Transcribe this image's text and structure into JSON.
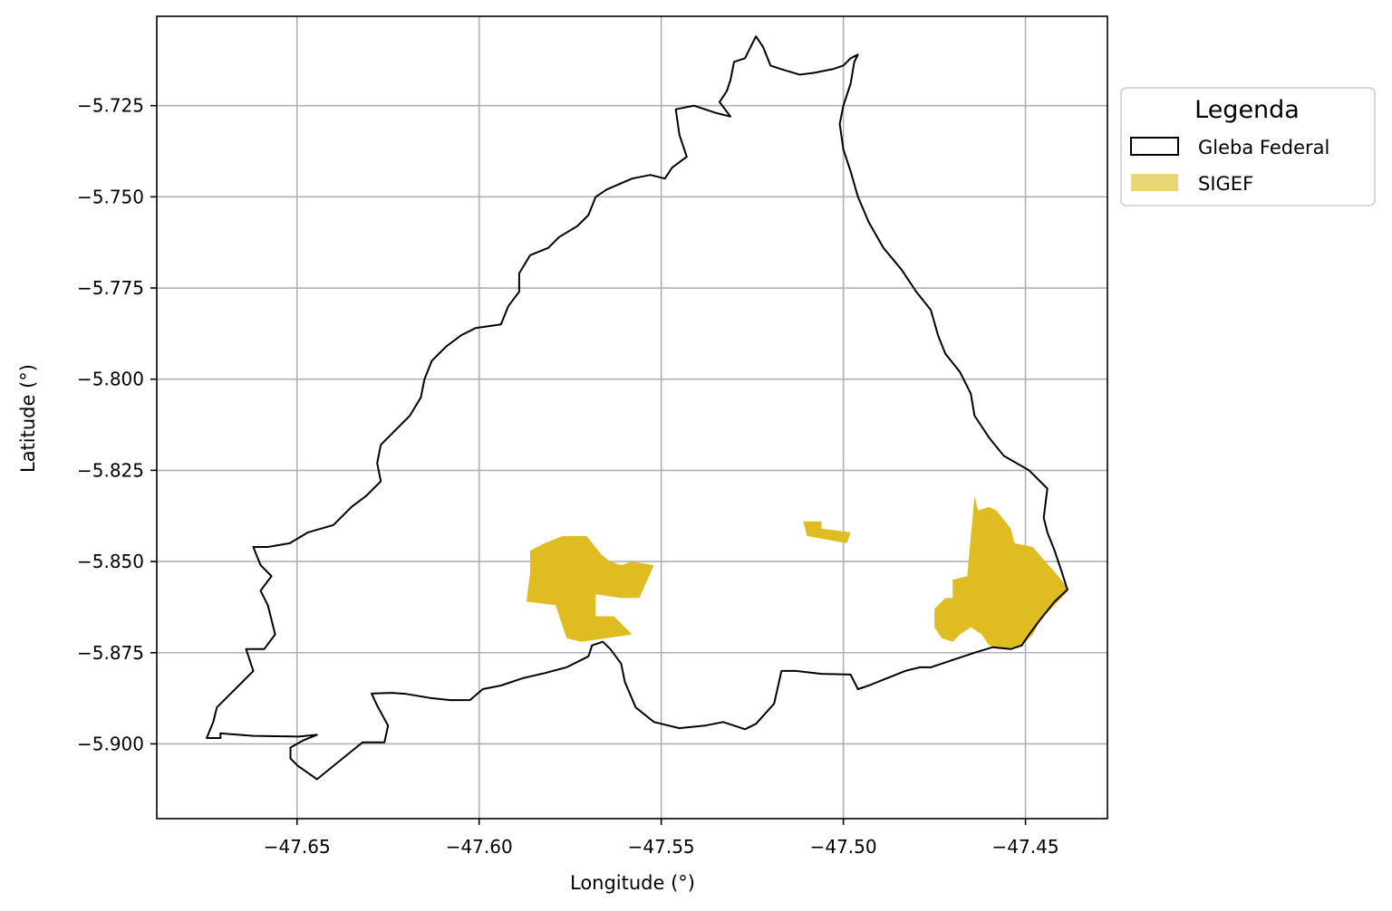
{
  "chart_data": {
    "type": "map",
    "xlabel": "Longitude (°)",
    "ylabel": "Latitude (°)",
    "xlim": [
      -47.6885,
      -47.4275
    ],
    "ylim": [
      -5.9205,
      -5.7005
    ],
    "grid": true,
    "xticks": [
      -47.65,
      -47.6,
      -47.55,
      -47.5,
      -47.45
    ],
    "yticks": [
      -5.725,
      -5.75,
      -5.775,
      -5.8,
      -5.825,
      -5.85,
      -5.875,
      -5.9
    ],
    "xtick_labels": [
      "−47.65",
      "−47.60",
      "−47.55",
      "−47.50",
      "−47.45"
    ],
    "ytick_labels": [
      "−5.725",
      "−5.750",
      "−5.775",
      "−5.800",
      "−5.825",
      "−5.850",
      "−5.875",
      "−5.900"
    ],
    "legend": {
      "title": "Legenda",
      "placement": "outside-upper-right",
      "entries": [
        {
          "label": "Gleba Federal",
          "style": "outline",
          "color": "#000000"
        },
        {
          "label": "SIGEF",
          "style": "fill",
          "color": "#e9d676"
        }
      ]
    },
    "colors": {
      "gleba_edge": "#000000",
      "sigef_fill": "#dfbd22",
      "grid": "#b0b0b0"
    },
    "layers": [
      {
        "name": "Gleba Federal",
        "kind": "outline",
        "rings": [
          [
            [
              -47.6748,
              -5.8984
            ],
            [
              -47.671,
              -5.8984
            ],
            [
              -47.671,
              -5.8971
            ],
            [
              -47.662,
              -5.8978
            ],
            [
              -47.6495,
              -5.898
            ],
            [
              -47.6445,
              -5.8975
            ],
            [
              -47.6482,
              -5.899
            ],
            [
              -47.6518,
              -5.901
            ],
            [
              -47.6518,
              -5.904
            ],
            [
              -47.6498,
              -5.906
            ],
            [
              -47.6445,
              -5.9097
            ],
            [
              -47.635,
              -5.902
            ],
            [
              -47.632,
              -5.8996
            ],
            [
              -47.626,
              -5.8996
            ],
            [
              -47.625,
              -5.895
            ],
            [
              -47.628,
              -5.8895
            ],
            [
              -47.6295,
              -5.8862
            ],
            [
              -47.624,
              -5.886
            ],
            [
              -47.62,
              -5.8863
            ],
            [
              -47.6135,
              -5.8874
            ],
            [
              -47.608,
              -5.888
            ],
            [
              -47.6025,
              -5.888
            ],
            [
              -47.599,
              -5.885
            ],
            [
              -47.594,
              -5.884
            ],
            [
              -47.588,
              -5.882
            ],
            [
              -47.582,
              -5.8806
            ],
            [
              -47.576,
              -5.879
            ],
            [
              -47.57,
              -5.876
            ],
            [
              -47.569,
              -5.873
            ],
            [
              -47.566,
              -5.872
            ],
            [
              -47.564,
              -5.874
            ],
            [
              -47.561,
              -5.878
            ],
            [
              -47.56,
              -5.883
            ],
            [
              -47.557,
              -5.89
            ],
            [
              -47.552,
              -5.894
            ],
            [
              -47.545,
              -5.8957
            ],
            [
              -47.538,
              -5.895
            ],
            [
              -47.533,
              -5.894
            ],
            [
              -47.527,
              -5.896
            ],
            [
              -47.524,
              -5.8945
            ],
            [
              -47.519,
              -5.889
            ],
            [
              -47.517,
              -5.88
            ],
            [
              -47.513,
              -5.88
            ],
            [
              -47.506,
              -5.8808
            ],
            [
              -47.498,
              -5.881
            ],
            [
              -47.496,
              -5.885
            ],
            [
              -47.493,
              -5.884
            ],
            [
              -47.488,
              -5.882
            ],
            [
              -47.483,
              -5.88
            ],
            [
              -47.479,
              -5.879
            ],
            [
              -47.476,
              -5.879
            ],
            [
              -47.47,
              -5.877
            ],
            [
              -47.464,
              -5.875
            ],
            [
              -47.459,
              -5.8735
            ],
            [
              -47.454,
              -5.874
            ],
            [
              -47.451,
              -5.873
            ],
            [
              -47.449,
              -5.87
            ],
            [
              -47.446,
              -5.866
            ],
            [
              -47.442,
              -5.861
            ],
            [
              -47.4385,
              -5.8577
            ],
            [
              -47.44,
              -5.853
            ],
            [
              -47.442,
              -5.847
            ],
            [
              -47.444,
              -5.842
            ],
            [
              -47.445,
              -5.838
            ],
            [
              -47.444,
              -5.83
            ],
            [
              -47.449,
              -5.825
            ],
            [
              -47.456,
              -5.821
            ],
            [
              -47.46,
              -5.816
            ],
            [
              -47.464,
              -5.81
            ],
            [
              -47.465,
              -5.804
            ],
            [
              -47.468,
              -5.798
            ],
            [
              -47.472,
              -5.793
            ],
            [
              -47.474,
              -5.788
            ],
            [
              -47.476,
              -5.781
            ],
            [
              -47.48,
              -5.776
            ],
            [
              -47.484,
              -5.77
            ],
            [
              -47.489,
              -5.764
            ],
            [
              -47.493,
              -5.757
            ],
            [
              -47.496,
              -5.75
            ],
            [
              -47.498,
              -5.743
            ],
            [
              -47.5,
              -5.737
            ],
            [
              -47.501,
              -5.73
            ],
            [
              -47.5,
              -5.725
            ],
            [
              -47.498,
              -5.719
            ],
            [
              -47.497,
              -5.713
            ],
            [
              -47.496,
              -5.711
            ],
            [
              -47.498,
              -5.712
            ],
            [
              -47.5,
              -5.714
            ],
            [
              -47.503,
              -5.715
            ],
            [
              -47.508,
              -5.716
            ],
            [
              -47.512,
              -5.7165
            ],
            [
              -47.517,
              -5.715
            ],
            [
              -47.52,
              -5.714
            ],
            [
              -47.522,
              -5.709
            ],
            [
              -47.524,
              -5.706
            ],
            [
              -47.525,
              -5.708
            ],
            [
              -47.527,
              -5.712
            ],
            [
              -47.53,
              -5.713
            ],
            [
              -47.531,
              -5.718
            ],
            [
              -47.532,
              -5.721
            ],
            [
              -47.534,
              -5.724
            ],
            [
              -47.531,
              -5.728
            ],
            [
              -47.535,
              -5.727
            ],
            [
              -47.541,
              -5.725
            ],
            [
              -47.546,
              -5.726
            ],
            [
              -47.545,
              -5.733
            ],
            [
              -47.543,
              -5.739
            ],
            [
              -47.547,
              -5.742
            ],
            [
              -47.549,
              -5.745
            ],
            [
              -47.553,
              -5.744
            ],
            [
              -47.558,
              -5.745
            ],
            [
              -47.565,
              -5.748
            ],
            [
              -47.568,
              -5.75
            ],
            [
              -47.57,
              -5.755
            ],
            [
              -47.573,
              -5.758
            ],
            [
              -47.578,
              -5.761
            ],
            [
              -47.581,
              -5.764
            ],
            [
              -47.586,
              -5.766
            ],
            [
              -47.589,
              -5.771
            ],
            [
              -47.589,
              -5.776
            ],
            [
              -47.592,
              -5.78
            ],
            [
              -47.594,
              -5.785
            ],
            [
              -47.601,
              -5.786
            ],
            [
              -47.605,
              -5.788
            ],
            [
              -47.609,
              -5.791
            ],
            [
              -47.613,
              -5.795
            ],
            [
              -47.615,
              -5.8
            ],
            [
              -47.616,
              -5.805
            ],
            [
              -47.619,
              -5.81
            ],
            [
              -47.623,
              -5.814
            ],
            [
              -47.627,
              -5.818
            ],
            [
              -47.628,
              -5.823
            ],
            [
              -47.627,
              -5.828
            ],
            [
              -47.631,
              -5.832
            ],
            [
              -47.635,
              -5.835
            ],
            [
              -47.64,
              -5.84
            ],
            [
              -47.647,
              -5.842
            ],
            [
              -47.652,
              -5.845
            ],
            [
              -47.658,
              -5.846
            ],
            [
              -47.662,
              -5.846
            ],
            [
              -47.66,
              -5.851
            ],
            [
              -47.657,
              -5.854
            ],
            [
              -47.66,
              -5.858
            ],
            [
              -47.658,
              -5.862
            ],
            [
              -47.656,
              -5.87
            ],
            [
              -47.659,
              -5.874
            ],
            [
              -47.664,
              -5.874
            ],
            [
              -47.662,
              -5.88
            ],
            [
              -47.665,
              -5.883
            ],
            [
              -47.668,
              -5.886
            ],
            [
              -47.672,
              -5.89
            ],
            [
              -47.673,
              -5.894
            ],
            [
              -47.6748,
              -5.8984
            ]
          ]
        ]
      },
      {
        "name": "SIGEF",
        "kind": "fill",
        "rings": [
          [
            [
              -47.586,
              -5.847
            ],
            [
              -47.582,
              -5.845
            ],
            [
              -47.577,
              -5.843
            ],
            [
              -47.5705,
              -5.843
            ],
            [
              -47.5665,
              -5.848
            ],
            [
              -47.564,
              -5.85
            ],
            [
              -47.561,
              -5.851
            ],
            [
              -47.558,
              -5.85
            ],
            [
              -47.552,
              -5.851
            ],
            [
              -47.556,
              -5.86
            ],
            [
              -47.561,
              -5.86
            ],
            [
              -47.568,
              -5.859
            ],
            [
              -47.568,
              -5.865
            ],
            [
              -47.563,
              -5.865
            ],
            [
              -47.558,
              -5.87
            ],
            [
              -47.572,
              -5.872
            ],
            [
              -47.576,
              -5.871
            ],
            [
              -47.579,
              -5.862
            ],
            [
              -47.587,
              -5.861
            ],
            [
              -47.586,
              -5.853
            ]
          ],
          [
            [
              -47.511,
              -5.839
            ],
            [
              -47.506,
              -5.839
            ],
            [
              -47.506,
              -5.841
            ],
            [
              -47.498,
              -5.842
            ],
            [
              -47.499,
              -5.845
            ],
            [
              -47.51,
              -5.843
            ]
          ],
          [
            [
              -47.464,
              -5.832
            ],
            [
              -47.463,
              -5.836
            ],
            [
              -47.46,
              -5.835
            ],
            [
              -47.458,
              -5.836
            ],
            [
              -47.454,
              -5.841
            ],
            [
              -47.453,
              -5.845
            ],
            [
              -47.448,
              -5.846
            ],
            [
              -47.441,
              -5.854
            ],
            [
              -47.438,
              -5.8577
            ],
            [
              -47.442,
              -5.862
            ],
            [
              -47.446,
              -5.866
            ],
            [
              -47.448,
              -5.87
            ],
            [
              -47.451,
              -5.873
            ],
            [
              -47.456,
              -5.874
            ],
            [
              -47.46,
              -5.873
            ],
            [
              -47.462,
              -5.87
            ],
            [
              -47.465,
              -5.868
            ],
            [
              -47.468,
              -5.87
            ],
            [
              -47.47,
              -5.872
            ],
            [
              -47.473,
              -5.871
            ],
            [
              -47.475,
              -5.868
            ],
            [
              -47.475,
              -5.863
            ],
            [
              -47.472,
              -5.86
            ],
            [
              -47.47,
              -5.86
            ],
            [
              -47.47,
              -5.855
            ],
            [
              -47.466,
              -5.854
            ],
            [
              -47.464,
              -5.832
            ]
          ]
        ]
      }
    ]
  }
}
